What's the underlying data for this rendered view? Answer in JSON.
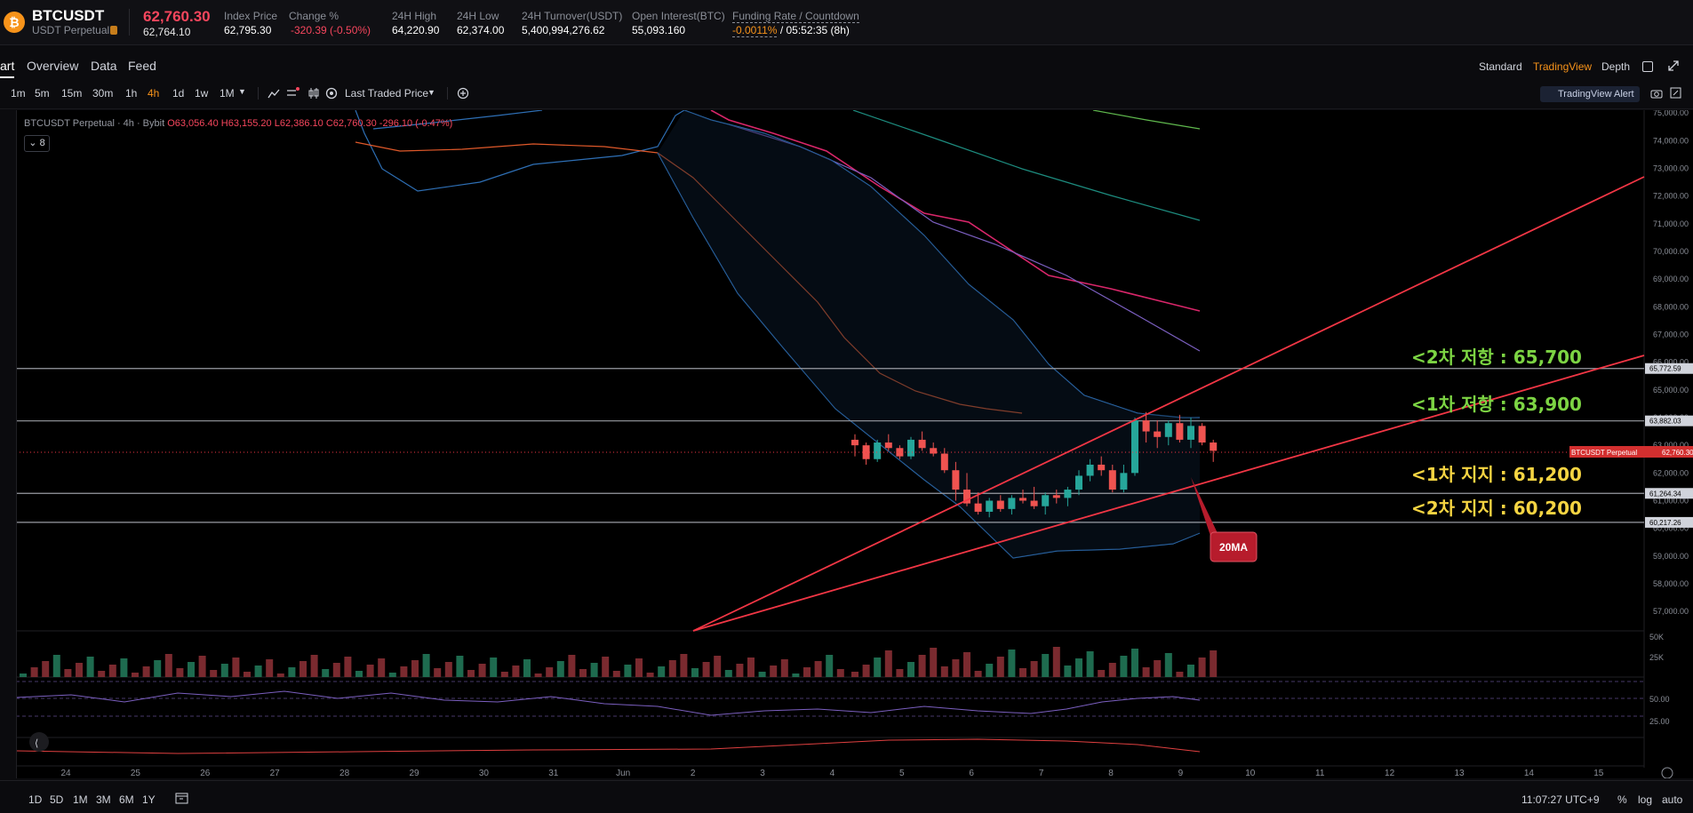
{
  "header": {
    "symbol": "BTCUSDT",
    "contract": "USDT Perpetual",
    "last_price": "62,760.30",
    "mark_price": "62,764.10",
    "stats": [
      {
        "label": "Index Price",
        "value": "62,795.30"
      },
      {
        "label": "Change %",
        "value": "-320.39 (-0.50%)",
        "tone": "negative"
      },
      {
        "label": "24H High",
        "value": "64,220.90"
      },
      {
        "label": "24H Low",
        "value": "62,374.00"
      },
      {
        "label": "24H Turnover(USDT)",
        "value": "5,400,994,276.62"
      },
      {
        "label": "Open Interest(BTC)",
        "value": "55,093.160"
      }
    ],
    "funding": {
      "label": "Funding Rate / Countdown",
      "rate": "-0.0011%",
      "countdown": " / 05:52:35 (8h)"
    }
  },
  "tabs": [
    "art",
    "Overview",
    "Data",
    "Feed"
  ],
  "views": [
    "Standard",
    "TradingView",
    "Depth"
  ],
  "active_view": "TradingView",
  "timeframes": [
    "1m",
    "5m",
    "15m",
    "30m",
    "1h",
    "4h",
    "1d",
    "1w",
    "1M"
  ],
  "active_timeframe": "4h",
  "price_source": "Last Traded Price",
  "alert_button": "TradingView Alert",
  "legend": {
    "symbol": "BTCUSDT Perpetual · 4h · Bybit",
    "open": "O63,056.40",
    "high": "H63,155.20",
    "low": "L62,386.10",
    "close": "C62,760.30",
    "change": "-296.10 (-0.47%)"
  },
  "indicator_count": "8",
  "colors": {
    "up": "#26a69a",
    "down": "#ef5350",
    "accent": "#f7931a",
    "line_red": "#f23645",
    "green_text": "#7cd443",
    "yellow_text": "#f5d442"
  },
  "chart_data": {
    "type": "candlestick",
    "timeframe": "4h",
    "x_tick_labels": [
      "24",
      "25",
      "26",
      "27",
      "28",
      "29",
      "30",
      "31",
      "Jun",
      "2",
      "3",
      "4",
      "5",
      "6",
      "7",
      "8",
      "9",
      "10",
      "11",
      "12",
      "13",
      "14",
      "15"
    ],
    "y_tick_labels": [
      "75,000.00",
      "74,000.00",
      "73,000.00",
      "72,000.00",
      "71,000.00",
      "70,000.00",
      "69,000.00",
      "68,000.00",
      "67,000.00",
      "66,000.00",
      "65,000.00",
      "64,000.00",
      "63,000.00",
      "62,000.00",
      "61,000.00",
      "60,000.00",
      "59,000.00",
      "58,000.00",
      "57,000.00"
    ],
    "ylim": [
      56300,
      75100
    ],
    "candles": [
      [
        63200,
        63400,
        62600,
        63000
      ],
      [
        63000,
        63100,
        62300,
        62500
      ],
      [
        62500,
        63200,
        62400,
        63100
      ],
      [
        63100,
        63400,
        62800,
        62900
      ],
      [
        62900,
        63000,
        62500,
        62600
      ],
      [
        62600,
        63300,
        62500,
        63200
      ],
      [
        63200,
        63500,
        62800,
        62900
      ],
      [
        62900,
        63100,
        62600,
        62700
      ],
      [
        62700,
        62900,
        62000,
        62100
      ],
      [
        62100,
        62400,
        61000,
        61400
      ],
      [
        61400,
        62000,
        60800,
        60900
      ],
      [
        60900,
        61300,
        60500,
        60600
      ],
      [
        60600,
        61100,
        60400,
        61000
      ],
      [
        61000,
        61200,
        60600,
        60700
      ],
      [
        60700,
        61200,
        60500,
        61100
      ],
      [
        61100,
        61400,
        60900,
        61000
      ],
      [
        61000,
        61500,
        60700,
        60800
      ],
      [
        60800,
        61300,
        60500,
        61200
      ],
      [
        61200,
        61400,
        60900,
        61100
      ],
      [
        61100,
        61500,
        60800,
        61400
      ],
      [
        61400,
        62100,
        61200,
        61900
      ],
      [
        61900,
        62500,
        61700,
        62300
      ],
      [
        62300,
        62600,
        61900,
        62100
      ],
      [
        62100,
        62300,
        61300,
        61400
      ],
      [
        61400,
        62300,
        61300,
        62000
      ],
      [
        62000,
        64000,
        61900,
        63900
      ],
      [
        63900,
        64200,
        63100,
        63500
      ],
      [
        63500,
        63900,
        62900,
        63300
      ],
      [
        63300,
        63900,
        63000,
        63800
      ],
      [
        63800,
        64100,
        63100,
        63200
      ],
      [
        63200,
        64000,
        62900,
        63700
      ],
      [
        63700,
        63800,
        63000,
        63100
      ],
      [
        63100,
        63200,
        62400,
        62800
      ]
    ],
    "horizontal_levels": [
      {
        "price": 65772.59,
        "label": "65,772.59"
      },
      {
        "price": 63882.03,
        "label": "63,882.03"
      },
      {
        "price": 61264.34,
        "label": "61,264.34"
      },
      {
        "price": 60217.26,
        "label": "60,217.26"
      }
    ],
    "last_price_tag": {
      "name": "BTCUSDT Perpetual",
      "value": "62,760.30"
    },
    "annotations": [
      {
        "text": "<2차 저항 : 65,700",
        "color": "green"
      },
      {
        "text": "<1차 저항 : 63,900",
        "color": "green"
      },
      {
        "text": "<1차 지지 : 61,200",
        "color": "yellow"
      },
      {
        "text": "<2차 지지 : 60,200",
        "color": "yellow"
      },
      {
        "text": "20MA",
        "color": "callout"
      }
    ],
    "volume_ticks": [
      "50K",
      "25K"
    ],
    "rsi_ticks": [
      "50.00",
      "25.00"
    ]
  },
  "bottom": {
    "ranges": [
      "1D",
      "5D",
      "1M",
      "3M",
      "6M",
      "1Y"
    ],
    "clock": "11:07:27 UTC+9",
    "pct": "%",
    "log": "log",
    "auto": "auto"
  }
}
